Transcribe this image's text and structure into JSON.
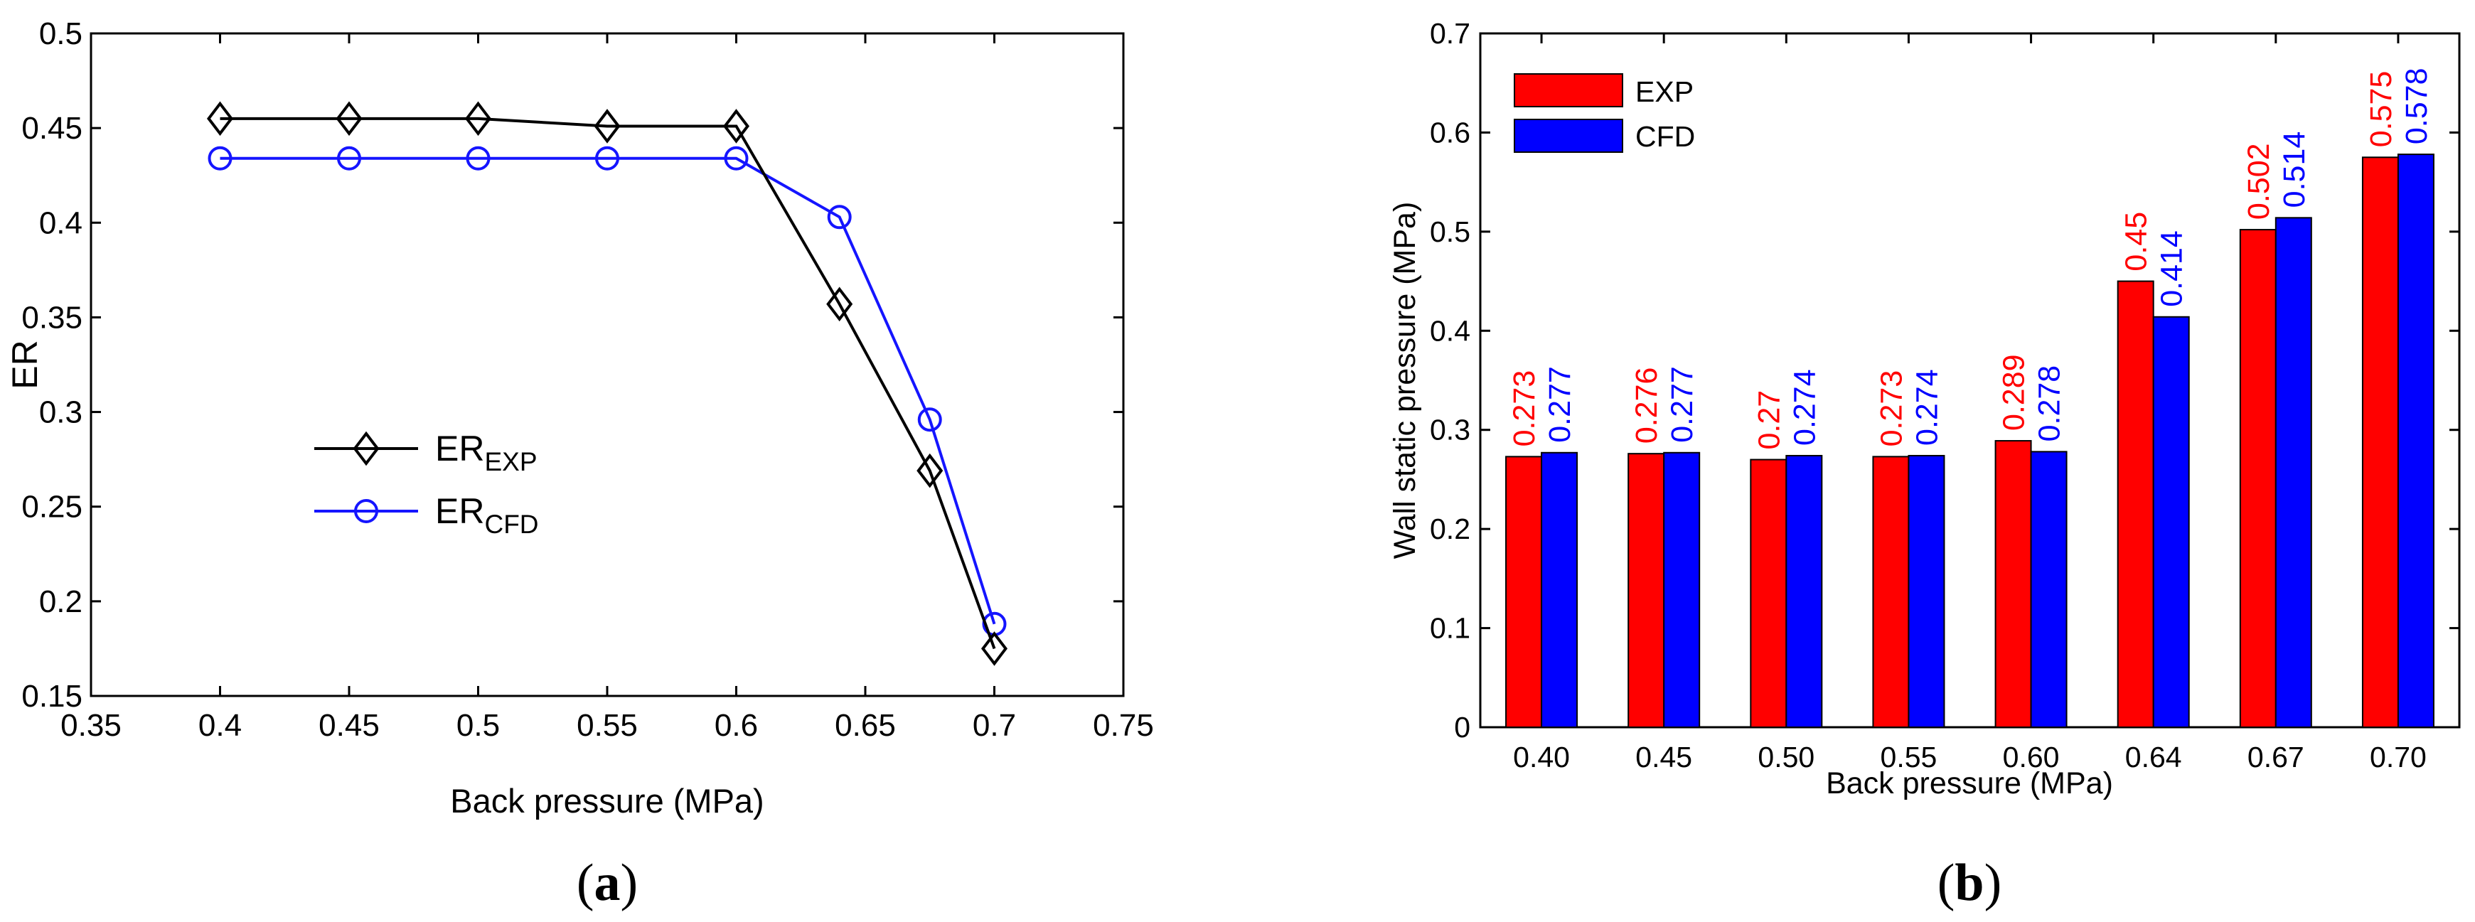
{
  "chart_data": [
    {
      "type": "line",
      "caption_paren_open": "(",
      "caption_letter": "a",
      "caption_paren_close": ")",
      "xlabel": "Back pressure (MPa)",
      "ylabel": "ER",
      "xlim": [
        0.35,
        0.75
      ],
      "ylim": [
        0.15,
        0.5
      ],
      "xticks": [
        "0.35",
        "0.4",
        "0.45",
        "0.5",
        "0.55",
        "0.6",
        "0.65",
        "0.7",
        "0.75"
      ],
      "yticks": [
        "0.15",
        "0.2",
        "0.25",
        "0.3",
        "0.35",
        "0.4",
        "0.45",
        "0.5"
      ],
      "grid": false,
      "legend_position": "middle-left",
      "series": [
        {
          "name": "ER_EXP",
          "legend_main": "ER",
          "legend_sub": "EXP",
          "color": "#000000",
          "marker": "diamond",
          "x": [
            0.4,
            0.45,
            0.5,
            0.55,
            0.6,
            0.64,
            0.675,
            0.7
          ],
          "y": [
            0.455,
            0.455,
            0.455,
            0.451,
            0.451,
            0.357,
            0.269,
            0.175
          ]
        },
        {
          "name": "ER_CFD",
          "legend_main": "ER",
          "legend_sub": "CFD",
          "color": "#1515ff",
          "marker": "circle",
          "x": [
            0.4,
            0.45,
            0.5,
            0.55,
            0.6,
            0.64,
            0.675,
            0.7
          ],
          "y": [
            0.434,
            0.434,
            0.434,
            0.434,
            0.434,
            0.403,
            0.296,
            0.188
          ]
        }
      ]
    },
    {
      "type": "bar",
      "caption_paren_open": "(",
      "caption_letter": "b",
      "caption_paren_close": ")",
      "xlabel": "Back pressure (MPa)",
      "ylabel": "Wall static pressure (MPa)",
      "ylim": [
        0,
        0.7
      ],
      "yticks": [
        "0",
        "0.1",
        "0.2",
        "0.3",
        "0.4",
        "0.5",
        "0.6",
        "0.7"
      ],
      "grid": false,
      "legend_position": "top-left",
      "categories": [
        "0.40",
        "0.45",
        "0.50",
        "0.55",
        "0.60",
        "0.64",
        "0.67",
        "0.70"
      ],
      "series": [
        {
          "name": "EXP",
          "color": "#ff0000",
          "values": [
            0.273,
            0.276,
            0.27,
            0.273,
            0.289,
            0.45,
            0.502,
            0.575
          ],
          "labels": [
            "0.273",
            "0.276",
            "0.27",
            "0.273",
            "0.289",
            "0.45",
            "0.502",
            "0.575"
          ]
        },
        {
          "name": "CFD",
          "color": "#0000ff",
          "values": [
            0.277,
            0.277,
            0.274,
            0.274,
            0.278,
            0.414,
            0.514,
            0.578
          ],
          "labels": [
            "0.277",
            "0.277",
            "0.274",
            "0.274",
            "0.278",
            "0.414",
            "0.514",
            "0.578"
          ]
        }
      ]
    }
  ]
}
